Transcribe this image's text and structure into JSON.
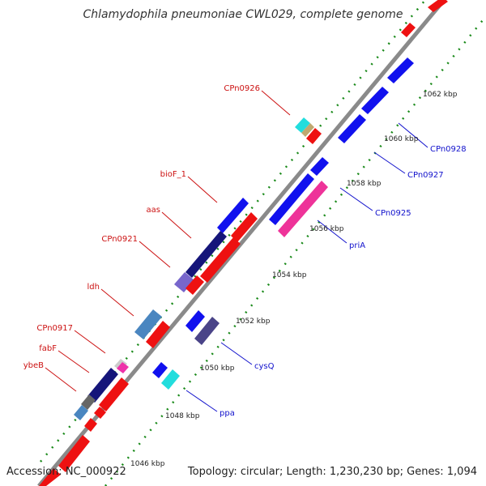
{
  "header": {
    "title": "Chlamydophila pneumoniae CWL029, complete genome"
  },
  "footer": {
    "accession": "Accession: NC_000922",
    "topology": "Topology: circular; Length: 1,230,230 bp; Genes: 1,094"
  },
  "colors": {
    "backbone": "#8a8a8a",
    "tick_dots": "#1a8a1a",
    "forward_label": "#cc1111",
    "reverse_label": "#1111cc",
    "red_gene": "#ee1111",
    "blue_gene": "#1111ee",
    "navy_gene": "#15157a",
    "lavender_gene": "#7766cc",
    "steel_gene": "#4a86c0",
    "cyan_gene": "#22dddd",
    "tan_gene": "#c0a870",
    "pink_gene": "#ee3399",
    "grey_gene": "#666666",
    "slate_gene": "#4a4488",
    "lightgrey_gene": "#cccccc",
    "magenta_gene": "#ee33aa"
  },
  "ruler": {
    "ticks": [
      "1046 kbp",
      "1048 kbp",
      "1050 kbp",
      "1052 kbp",
      "1054 kbp",
      "1056 kbp",
      "1058 kbp",
      "1060 kbp",
      "1062 kbp"
    ]
  },
  "labels": {
    "forward": [
      "CPn0926",
      "bioF_1",
      "aas",
      "CPn0921",
      "ldh",
      "CPn0917",
      "fabF",
      "ybeB"
    ],
    "reverse": [
      "CPn0928",
      "CPn0927",
      "CPn0925",
      "priA",
      "cysQ",
      "ppa"
    ]
  }
}
